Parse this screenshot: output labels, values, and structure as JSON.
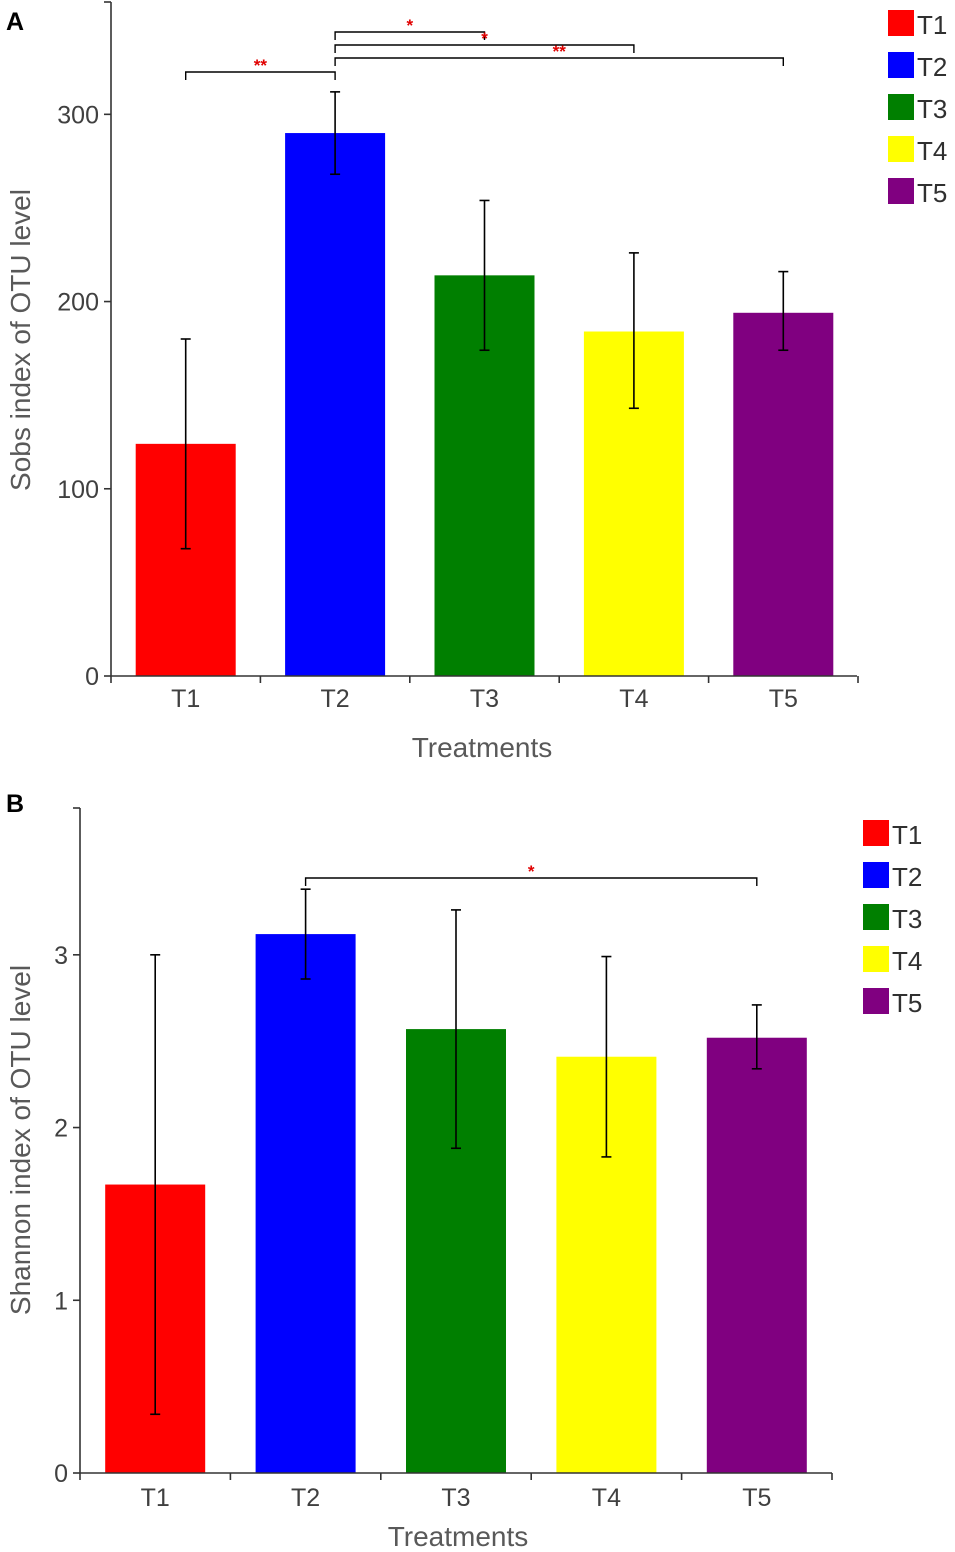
{
  "colors": {
    "T1": "#ff0000",
    "T2": "#0000ff",
    "T3": "#007f00",
    "T4": "#ffff00",
    "T5": "#800080",
    "significance": "#e00000",
    "axis": "#333333"
  },
  "chart_data": [
    {
      "panel": "A",
      "type": "bar",
      "xlabel": "Treatments",
      "ylabel": "Sobs index of OTU level",
      "ylim": [
        0,
        360
      ],
      "yticks": [
        0,
        100,
        200,
        300
      ],
      "categories": [
        "T1",
        "T2",
        "T3",
        "T4",
        "T5"
      ],
      "values": [
        124,
        290,
        214,
        184,
        194
      ],
      "error_low": [
        68,
        268,
        174,
        143,
        174
      ],
      "error_high": [
        180,
        312,
        254,
        226,
        216
      ],
      "legend": [
        "T1",
        "T2",
        "T3",
        "T4",
        "T5"
      ],
      "significance": [
        {
          "from": "T1",
          "to": "T2",
          "label": "**"
        },
        {
          "from": "T2",
          "to": "T3",
          "label": "*"
        },
        {
          "from": "T2",
          "to": "T4",
          "label": "*"
        },
        {
          "from": "T2",
          "to": "T5",
          "label": "**"
        }
      ]
    },
    {
      "panel": "B",
      "type": "bar",
      "xlabel": "Treatments",
      "ylabel": "Shannon index of OTU level",
      "ylim": [
        0,
        3.85
      ],
      "yticks": [
        0,
        1,
        2,
        3
      ],
      "categories": [
        "T1",
        "T2",
        "T3",
        "T4",
        "T5"
      ],
      "values": [
        1.67,
        3.12,
        2.57,
        2.41,
        2.52
      ],
      "error_low": [
        0.34,
        2.86,
        1.88,
        1.83,
        2.34
      ],
      "error_high": [
        3.0,
        3.38,
        3.26,
        2.99,
        2.71
      ],
      "legend": [
        "T1",
        "T2",
        "T3",
        "T4",
        "T5"
      ],
      "significance": [
        {
          "from": "T2",
          "to": "T5",
          "label": "*"
        }
      ]
    }
  ]
}
